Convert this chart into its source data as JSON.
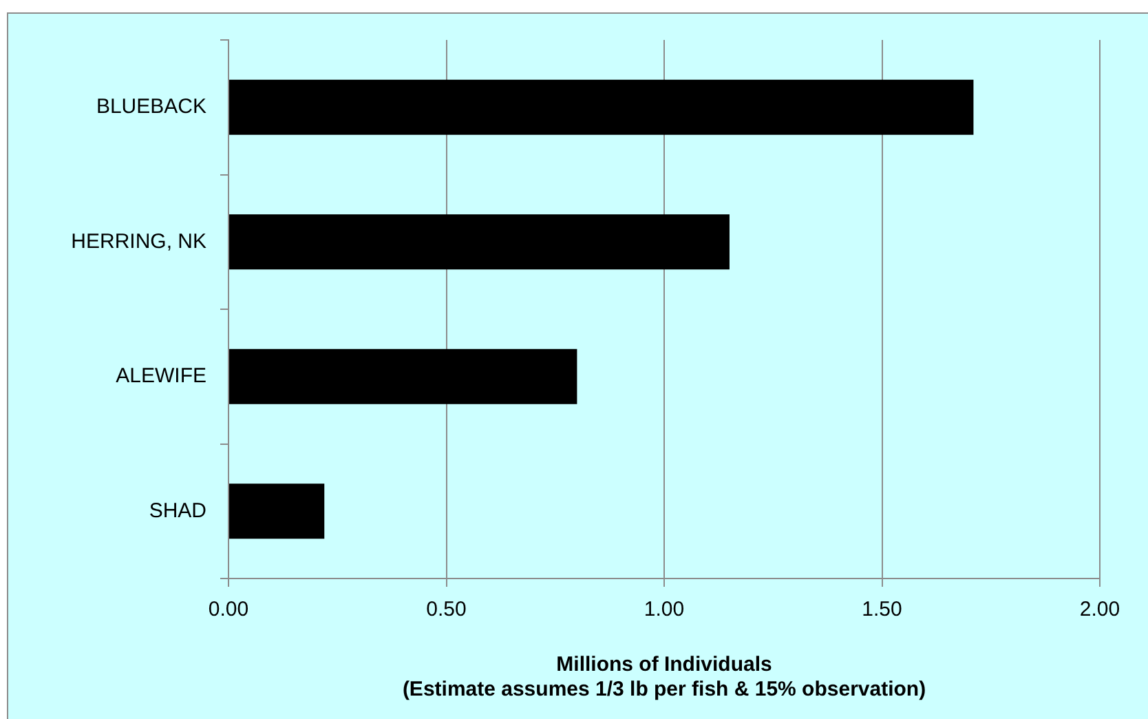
{
  "chart_data": {
    "type": "bar",
    "orientation": "horizontal",
    "xlabel": "Millions of Individuals\n(Estimate assumes 1/3 lb per fish & 15% observation)",
    "categories": [
      "BLUEBACK",
      "HERRING, NK",
      "ALEWIFE",
      "SHAD"
    ],
    "values": [
      1.71,
      1.15,
      0.8,
      0.22
    ],
    "color": "#000000",
    "xlim": [
      0,
      2
    ],
    "xticks": [
      {
        "value": 0,
        "label": "0.00"
      },
      {
        "value": 0.5,
        "label": "0.50"
      },
      {
        "value": 1,
        "label": "1.00"
      },
      {
        "value": 1.5,
        "label": "1.50"
      },
      {
        "value": 2,
        "label": "2.00"
      }
    ],
    "grid": "x",
    "legend": false
  }
}
